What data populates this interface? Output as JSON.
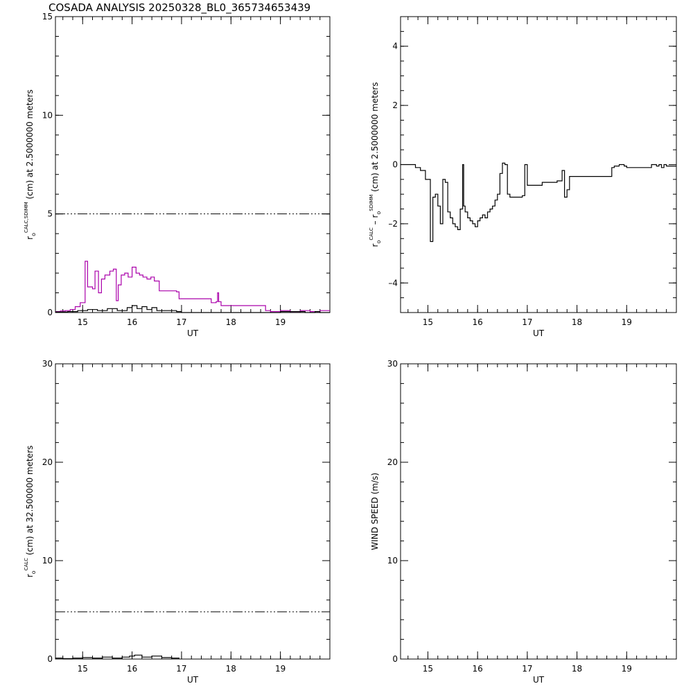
{
  "page_title": "COSADA ANALYSIS 20250328_BL0_365734653439",
  "chart_data": [
    {
      "type": "line",
      "xlabel": "UT",
      "ylabel_parts": [
        "r",
        "o",
        "CALC,SDIMM",
        " (cm)  at  2.5000000 meters"
      ],
      "xlim": [
        14.45,
        20.0
      ],
      "ylim": [
        0,
        15
      ],
      "xticks": [
        15,
        16,
        17,
        18,
        19
      ],
      "xtick_labels": [
        "15",
        "16",
        "17",
        "18",
        "19"
      ],
      "yticks": [
        0,
        5,
        10,
        15
      ],
      "ytick_labels": [
        "0",
        "5",
        "10",
        "15"
      ],
      "reference_line": {
        "y": 5,
        "style": "dash-dot-dot"
      },
      "series": [
        {
          "color": "#aa00aa",
          "style": "steps",
          "x": [
            14.45,
            14.55,
            14.65,
            14.75,
            14.85,
            14.95,
            15.0,
            15.05,
            15.1,
            15.2,
            15.25,
            15.32,
            15.38,
            15.45,
            15.55,
            15.62,
            15.68,
            15.72,
            15.78,
            15.85,
            15.92,
            16.0,
            16.08,
            16.15,
            16.22,
            16.3,
            16.38,
            16.45,
            16.55,
            16.9,
            16.95,
            17.6,
            17.7,
            17.73,
            17.75,
            17.8,
            18.7,
            18.8,
            19.0,
            19.2,
            19.4,
            19.6,
            19.8,
            20.0
          ],
          "y": [
            0.05,
            0.08,
            0.1,
            0.15,
            0.3,
            0.5,
            0.5,
            2.6,
            1.3,
            1.2,
            2.1,
            1.0,
            1.7,
            1.9,
            2.1,
            2.2,
            0.6,
            1.4,
            1.9,
            2.0,
            1.8,
            2.3,
            2.0,
            1.9,
            1.8,
            1.7,
            1.8,
            1.6,
            1.1,
            1.05,
            0.7,
            0.5,
            0.55,
            1.0,
            0.55,
            0.35,
            0.1,
            0.05,
            0.1,
            0.05,
            0.1,
            0.05,
            0.1,
            0.1
          ]
        },
        {
          "color": "#000000",
          "style": "steps",
          "x": [
            14.45,
            14.7,
            14.9,
            15.1,
            15.3,
            15.5,
            15.7,
            15.9,
            16.0,
            16.1,
            16.2,
            16.3,
            16.4,
            16.5,
            16.7,
            16.9,
            17.0,
            17.3,
            17.6,
            17.8,
            18.0,
            18.5,
            19.0,
            19.5,
            19.7,
            19.8,
            20.0
          ],
          "y": [
            0.03,
            0.05,
            0.1,
            0.15,
            0.1,
            0.2,
            0.1,
            0.25,
            0.35,
            0.2,
            0.3,
            0.15,
            0.25,
            0.1,
            0.1,
            0.05,
            0.0,
            0.0,
            0.0,
            0.0,
            0.0,
            0.0,
            0.05,
            0.0,
            0.05,
            0.0,
            0.0
          ]
        }
      ]
    },
    {
      "type": "line",
      "xlabel": "UT",
      "ylabel_parts": [
        "r",
        "o",
        "CALC",
        "  – r",
        "o",
        "SDIMM",
        " (cm)  at  2.5000000 meters"
      ],
      "xlim": [
        14.45,
        20.0
      ],
      "ylim": [
        -5,
        5
      ],
      "xticks": [
        15,
        16,
        17,
        18,
        19
      ],
      "xtick_labels": [
        "15",
        "16",
        "17",
        "18",
        "19"
      ],
      "yticks": [
        -4,
        -2,
        0,
        2,
        4
      ],
      "ytick_labels": [
        "–4",
        "–2",
        "0",
        "2",
        "4"
      ],
      "series": [
        {
          "color": "#000000",
          "style": "steps",
          "x": [
            14.45,
            14.55,
            14.75,
            14.85,
            14.95,
            15.0,
            15.05,
            15.1,
            15.15,
            15.2,
            15.25,
            15.3,
            15.35,
            15.4,
            15.45,
            15.5,
            15.55,
            15.6,
            15.65,
            15.7,
            15.72,
            15.75,
            15.8,
            15.85,
            15.9,
            15.95,
            16.0,
            16.05,
            16.1,
            16.15,
            16.2,
            16.25,
            16.3,
            16.35,
            16.4,
            16.45,
            16.5,
            16.55,
            16.6,
            16.65,
            16.9,
            16.95,
            17.0,
            17.3,
            17.6,
            17.7,
            17.75,
            17.8,
            17.85,
            18.0,
            18.7,
            18.75,
            18.85,
            18.95,
            19.0,
            19.45,
            19.5,
            19.6,
            19.65,
            19.7,
            19.75,
            19.8,
            19.9,
            20.0
          ],
          "y": [
            0.0,
            0.0,
            -0.1,
            -0.2,
            -0.5,
            -0.5,
            -2.6,
            -1.1,
            -1.0,
            -1.4,
            -2.0,
            -0.5,
            -0.6,
            -1.6,
            -1.8,
            -2.0,
            -2.1,
            -2.2,
            -1.5,
            0.0,
            -1.4,
            -1.6,
            -1.8,
            -1.9,
            -2.0,
            -2.1,
            -1.9,
            -1.8,
            -1.7,
            -1.8,
            -1.6,
            -1.5,
            -1.4,
            -1.2,
            -1.0,
            -0.3,
            0.05,
            0.0,
            -1.0,
            -1.1,
            -1.05,
            0.0,
            -0.7,
            -0.6,
            -0.55,
            -0.2,
            -1.1,
            -0.85,
            -0.4,
            -0.4,
            -0.1,
            -0.05,
            0.0,
            -0.05,
            -0.1,
            -0.1,
            0.0,
            -0.05,
            0.0,
            -0.1,
            0.0,
            -0.05,
            -0.05,
            -0.05
          ]
        }
      ]
    },
    {
      "type": "line",
      "xlabel": "UT",
      "ylabel_parts": [
        "r",
        "o",
        "CALC",
        " (cm)  at  32.500000 meters"
      ],
      "xlim": [
        14.45,
        20.0
      ],
      "ylim": [
        0,
        30
      ],
      "xticks": [
        15,
        16,
        17,
        18,
        19
      ],
      "xtick_labels": [
        "15",
        "16",
        "17",
        "18",
        "19"
      ],
      "yticks": [
        0,
        10,
        20,
        30
      ],
      "ytick_labels": [
        "0",
        "10",
        "20",
        "30"
      ],
      "reference_line": {
        "y": 4.8,
        "style": "dash-dot-dot"
      },
      "series": [
        {
          "color": "#000000",
          "style": "steps",
          "x": [
            14.45,
            14.6,
            14.8,
            15.0,
            15.2,
            15.4,
            15.6,
            15.8,
            15.95,
            16.05,
            16.2,
            16.4,
            16.6,
            16.8,
            16.95
          ],
          "y": [
            0.1,
            0.05,
            0.1,
            0.15,
            0.1,
            0.2,
            0.1,
            0.2,
            0.3,
            0.4,
            0.2,
            0.3,
            0.15,
            0.1,
            0.05
          ]
        }
      ]
    },
    {
      "type": "line",
      "xlabel": "UT",
      "ylabel_parts": [
        "WIND SPEED (m/s)"
      ],
      "xlim": [
        14.45,
        20.0
      ],
      "ylim": [
        0,
        30
      ],
      "xticks": [
        15,
        16,
        17,
        18,
        19
      ],
      "xtick_labels": [
        "15",
        "16",
        "17",
        "18",
        "19"
      ],
      "yticks": [
        0,
        10,
        20,
        30
      ],
      "ytick_labels": [
        "0",
        "10",
        "20",
        "30"
      ],
      "series": []
    }
  ]
}
